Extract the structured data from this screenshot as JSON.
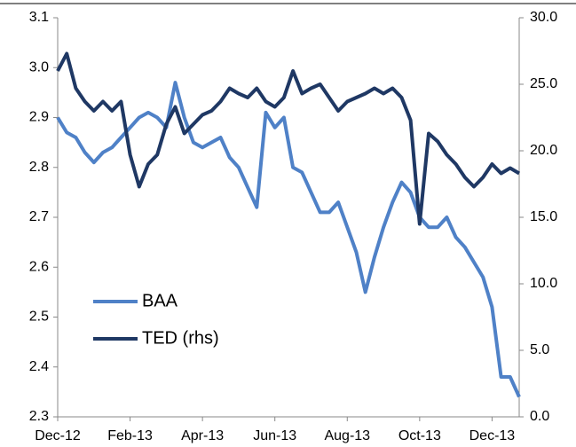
{
  "chart_data": {
    "type": "line",
    "categories": [
      "Dec-12",
      null,
      null,
      null,
      null,
      null,
      null,
      null,
      "Feb-13",
      null,
      null,
      null,
      null,
      null,
      null,
      null,
      "Apr-13",
      null,
      null,
      null,
      null,
      null,
      null,
      null,
      "Jun-13",
      null,
      null,
      null,
      null,
      null,
      null,
      null,
      "Aug-13",
      null,
      null,
      null,
      null,
      null,
      null,
      null,
      "Oct-13",
      null,
      null,
      null,
      null,
      null,
      null,
      null,
      "Dec-13",
      null,
      null,
      null
    ],
    "series": [
      {
        "name": "BAA",
        "color": "#4f81c7",
        "axis": "y",
        "values": [
          2.9,
          2.87,
          2.86,
          2.83,
          2.81,
          2.83,
          2.84,
          2.86,
          2.88,
          2.9,
          2.91,
          2.9,
          2.88,
          2.97,
          2.9,
          2.85,
          2.84,
          2.85,
          2.86,
          2.82,
          2.8,
          2.76,
          2.72,
          2.91,
          2.88,
          2.9,
          2.8,
          2.79,
          2.75,
          2.71,
          2.71,
          2.73,
          2.68,
          2.63,
          2.55,
          2.62,
          2.68,
          2.73,
          2.77,
          2.75,
          2.7,
          2.68,
          2.68,
          2.7,
          2.66,
          2.64,
          2.61,
          2.58,
          2.52,
          2.38,
          2.38,
          2.34
        ]
      },
      {
        "name": "TED (rhs)",
        "color": "#1f3864",
        "axis": "y2",
        "values": [
          26.0,
          27.3,
          24.7,
          23.7,
          23.0,
          23.7,
          23.0,
          23.7,
          19.7,
          17.3,
          19.0,
          19.7,
          22.0,
          23.3,
          21.3,
          22.0,
          22.7,
          23.0,
          23.7,
          24.7,
          24.3,
          24.0,
          24.7,
          23.7,
          23.3,
          24.0,
          26.0,
          24.3,
          24.7,
          25.0,
          24.0,
          23.0,
          23.7,
          24.0,
          24.3,
          24.7,
          24.3,
          24.7,
          24.0,
          22.3,
          14.5,
          21.3,
          20.7,
          19.7,
          19.0,
          18.0,
          17.3,
          18.0,
          19.0,
          18.3,
          18.7,
          18.3
        ]
      }
    ],
    "ylim": [
      2.3,
      3.1
    ],
    "yticks": [
      {
        "value": 2.3,
        "label": "2.3"
      },
      {
        "value": 2.4,
        "label": "2.4"
      },
      {
        "value": 2.5,
        "label": "2.5"
      },
      {
        "value": 2.6,
        "label": "2.6"
      },
      {
        "value": 2.7,
        "label": "2.7"
      },
      {
        "value": 2.8,
        "label": "2.8"
      },
      {
        "value": 2.9,
        "label": "2.9"
      },
      {
        "value": 3,
        "label": "3.0"
      },
      {
        "value": 3.1,
        "label": "3.1"
      }
    ],
    "y2lim": [
      0,
      30
    ],
    "y2ticks": [
      {
        "value": 0,
        "label": "0.0"
      },
      {
        "value": 5,
        "label": "5.0"
      },
      {
        "value": 10,
        "label": "10.0"
      },
      {
        "value": 15,
        "label": "15.0"
      },
      {
        "value": 20,
        "label": "20.0"
      },
      {
        "value": 25,
        "label": "25.0"
      },
      {
        "value": 30,
        "label": "30.0"
      }
    ],
    "grid": false,
    "legend": "center-left"
  }
}
